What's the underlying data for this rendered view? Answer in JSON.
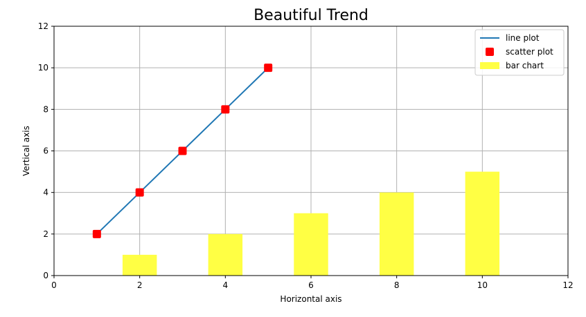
{
  "chart_data": {
    "type": "bar",
    "title": "Beautiful Trend",
    "xlabel": "Horizontal axis",
    "ylabel": "Vertical axis",
    "xlim": [
      0,
      12
    ],
    "ylim": [
      0,
      12
    ],
    "xticks": [
      0,
      2,
      4,
      6,
      8,
      10,
      12
    ],
    "yticks": [
      0,
      2,
      4,
      6,
      8,
      10,
      12
    ],
    "grid": true,
    "legend_position": "top-right",
    "series": [
      {
        "name": "line plot",
        "type": "line",
        "color": "#1f77b4",
        "x": [
          1,
          2,
          3,
          4,
          5
        ],
        "y": [
          2,
          4,
          6,
          8,
          10
        ]
      },
      {
        "name": "scatter plot",
        "type": "scatter",
        "color": "#ff0000",
        "x": [
          1,
          2,
          3,
          4,
          5
        ],
        "y": [
          2,
          4,
          6,
          8,
          10
        ]
      },
      {
        "name": "bar chart",
        "type": "bar",
        "color": "#ffff44",
        "x": [
          2,
          4,
          6,
          8,
          10
        ],
        "y": [
          1,
          2,
          3,
          4,
          5
        ],
        "bar_width": 0.8
      }
    ]
  }
}
